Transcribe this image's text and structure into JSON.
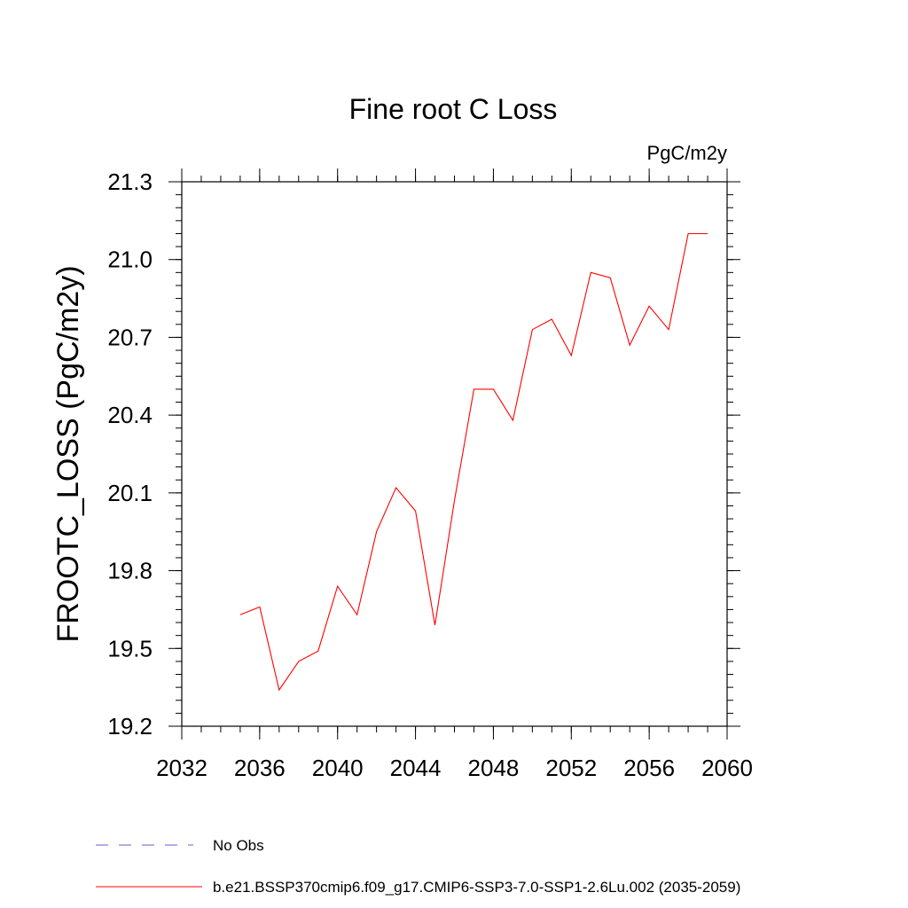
{
  "chart_data": {
    "type": "line",
    "title": "Fine root C Loss",
    "units": "PgC/m2y",
    "ylabel": "FROOTC_LOSS  (PgC/m2y)",
    "xlabel": "",
    "xlim": [
      2032,
      2060
    ],
    "ylim": [
      19.2,
      21.3
    ],
    "xticks": [
      2032,
      2036,
      2040,
      2044,
      2048,
      2052,
      2056,
      2060
    ],
    "yticks": [
      19.2,
      19.5,
      19.8,
      20.1,
      20.4,
      20.7,
      21.0,
      21.3
    ],
    "xtick_labels": [
      "2032",
      "2036",
      "2040",
      "2044",
      "2048",
      "2052",
      "2056",
      "2060"
    ],
    "ytick_labels": [
      "19.2",
      "19.5",
      "19.8",
      "20.1",
      "20.4",
      "20.7",
      "21.0",
      "21.3"
    ],
    "x_minor_step": 1,
    "y_minor_step": 0.05,
    "grid": false,
    "legend_position": "bottom-left",
    "series": [
      {
        "name": "b.e21.BSSP370cmip6.f09_g17.CMIP6-SSP3-7.0-SSP1-2.6Lu.002 (2035-2059)",
        "color": "#ff0000",
        "dash": "solid",
        "x": [
          2035,
          2036,
          2037,
          2038,
          2039,
          2040,
          2041,
          2042,
          2043,
          2044,
          2045,
          2046,
          2047,
          2048,
          2049,
          2050,
          2051,
          2052,
          2053,
          2054,
          2055,
          2056,
          2057,
          2058,
          2059
        ],
        "y": [
          19.63,
          19.66,
          19.34,
          19.45,
          19.49,
          19.74,
          19.63,
          19.95,
          20.12,
          20.03,
          19.59,
          20.07,
          20.5,
          20.5,
          20.38,
          20.73,
          20.77,
          20.63,
          20.95,
          20.93,
          20.67,
          20.82,
          20.73,
          21.1,
          21.1
        ]
      }
    ],
    "legend": [
      {
        "label": "No Obs",
        "color": "#6a5acd",
        "dash": "dashed"
      },
      {
        "label": "b.e21.BSSP370cmip6.f09_g17.CMIP6-SSP3-7.0-SSP1-2.6Lu.002 (2035-2059)",
        "color": "#ff0000",
        "dash": "solid"
      }
    ]
  }
}
